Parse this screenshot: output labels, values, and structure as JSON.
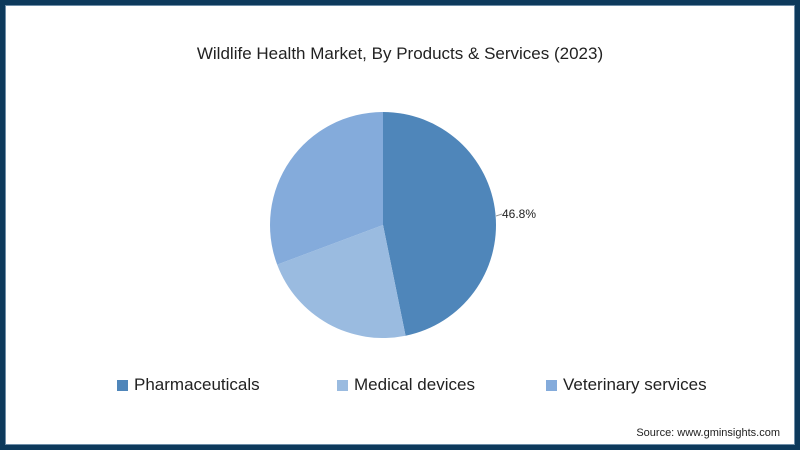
{
  "title": "Wildlife Health Market, By Products & Services (2023)",
  "source": "Source: www.gminsights.com",
  "data_label": "46.8%",
  "legend": [
    {
      "label": "Pharmaceuticals",
      "color": "#4f86ba"
    },
    {
      "label": "Medical devices",
      "color": "#9abbe0"
    },
    {
      "label": "Veterinary services",
      "color": "#84abdb"
    }
  ],
  "chart_data": {
    "type": "pie",
    "title": "Wildlife Health Market, By Products & Services (2023)",
    "categories": [
      "Pharmaceuticals",
      "Medical devices",
      "Veterinary services"
    ],
    "values": [
      46.8,
      22.5,
      30.7
    ],
    "colors": [
      "#4f86ba",
      "#9abbe0",
      "#84abdb"
    ],
    "labels_shown": {
      "Pharmaceuticals": "46.8%"
    },
    "legend_position": "bottom",
    "start_angle": "12 o'clock, clockwise"
  }
}
